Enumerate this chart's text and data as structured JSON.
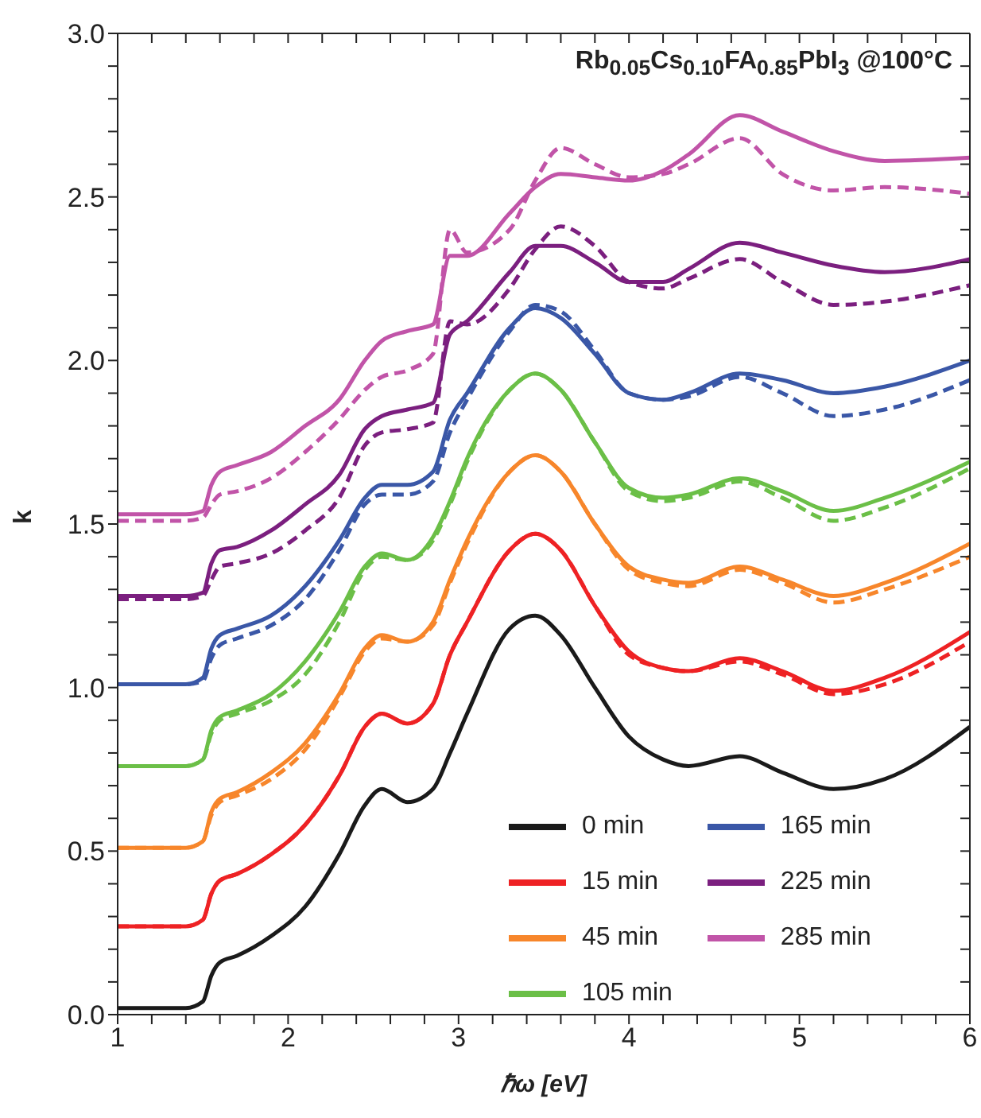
{
  "chart_data": {
    "type": "line",
    "title": "Rb$_{0.05}$Cs$_{0.10}$FA$_{0.85}$PbI$_{3}$ @100°C",
    "xlabel": "ℏω [eV]",
    "ylabel": "k",
    "x": [
      1,
      1.4,
      1.5,
      1.55,
      1.6,
      1.7,
      1.9,
      2.1,
      2.3,
      2.45,
      2.55,
      2.7,
      2.85,
      2.95,
      3.05,
      3.3,
      3.45,
      3.6,
      3.8,
      4.0,
      4.2,
      4.35,
      4.65,
      4.9,
      5.2,
      5.5,
      6
    ],
    "series": [
      {
        "name": "0 min",
        "color": "#1a1a1a",
        "line_style": "solid",
        "values": [
          0.02,
          0.02,
          0.04,
          0.12,
          0.16,
          0.18,
          0.24,
          0.33,
          0.49,
          0.64,
          0.69,
          0.65,
          0.69,
          0.8,
          0.92,
          1.18,
          1.22,
          1.16,
          1.0,
          0.85,
          0.78,
          0.76,
          0.79,
          0.74,
          0.69,
          0.72,
          0.88
        ]
      },
      {
        "name": "15 min",
        "color": "#ee2224",
        "line_style": "solid",
        "values": [
          0.27,
          0.27,
          0.29,
          0.37,
          0.41,
          0.43,
          0.49,
          0.58,
          0.73,
          0.88,
          0.92,
          0.89,
          0.95,
          1.1,
          1.2,
          1.42,
          1.47,
          1.42,
          1.25,
          1.11,
          1.06,
          1.05,
          1.09,
          1.05,
          0.99,
          1.03,
          1.17
        ]
      },
      {
        "color": "#ee2224",
        "line_style": "dashed",
        "values": [
          0.27,
          0.27,
          0.29,
          0.37,
          0.41,
          0.43,
          0.49,
          0.58,
          0.73,
          0.88,
          0.92,
          0.89,
          0.95,
          1.1,
          1.2,
          1.42,
          1.47,
          1.42,
          1.25,
          1.1,
          1.06,
          1.05,
          1.08,
          1.04,
          0.98,
          1.01,
          1.14
        ]
      },
      {
        "name": "45 min",
        "color": "#f7862b",
        "line_style": "solid",
        "values": [
          0.51,
          0.51,
          0.53,
          0.62,
          0.66,
          0.68,
          0.74,
          0.83,
          0.98,
          1.12,
          1.16,
          1.14,
          1.2,
          1.33,
          1.45,
          1.66,
          1.71,
          1.66,
          1.5,
          1.37,
          1.33,
          1.32,
          1.37,
          1.33,
          1.28,
          1.32,
          1.44
        ]
      },
      {
        "color": "#f7862b",
        "line_style": "dashed",
        "values": [
          0.51,
          0.51,
          0.53,
          0.61,
          0.65,
          0.67,
          0.72,
          0.81,
          0.97,
          1.11,
          1.15,
          1.14,
          1.19,
          1.32,
          1.44,
          1.66,
          1.71,
          1.66,
          1.5,
          1.36,
          1.32,
          1.31,
          1.36,
          1.32,
          1.26,
          1.3,
          1.4
        ]
      },
      {
        "name": "105 min",
        "color": "#6bbf47",
        "line_style": "solid",
        "values": [
          0.76,
          0.76,
          0.78,
          0.87,
          0.91,
          0.93,
          0.98,
          1.08,
          1.23,
          1.37,
          1.41,
          1.39,
          1.46,
          1.57,
          1.7,
          1.91,
          1.96,
          1.91,
          1.75,
          1.61,
          1.58,
          1.59,
          1.64,
          1.6,
          1.54,
          1.58,
          1.69
        ]
      },
      {
        "color": "#6bbf47",
        "line_style": "dashed",
        "values": [
          0.76,
          0.76,
          0.78,
          0.86,
          0.9,
          0.92,
          0.96,
          1.04,
          1.2,
          1.36,
          1.4,
          1.39,
          1.45,
          1.56,
          1.69,
          1.91,
          1.96,
          1.91,
          1.75,
          1.6,
          1.57,
          1.58,
          1.63,
          1.58,
          1.51,
          1.55,
          1.67
        ]
      },
      {
        "name": "165 min",
        "color": "#3a57a7",
        "line_style": "solid",
        "values": [
          1.01,
          1.01,
          1.03,
          1.12,
          1.16,
          1.18,
          1.22,
          1.31,
          1.45,
          1.58,
          1.62,
          1.62,
          1.66,
          1.82,
          1.9,
          2.1,
          2.16,
          2.13,
          2.02,
          1.9,
          1.88,
          1.9,
          1.96,
          1.94,
          1.9,
          1.92,
          2.0
        ]
      },
      {
        "color": "#3a57a7",
        "line_style": "dashed",
        "values": [
          1.01,
          1.01,
          1.02,
          1.09,
          1.13,
          1.15,
          1.19,
          1.27,
          1.42,
          1.56,
          1.59,
          1.59,
          1.63,
          1.78,
          1.88,
          2.09,
          2.17,
          2.15,
          2.03,
          1.9,
          1.88,
          1.89,
          1.95,
          1.9,
          1.83,
          1.85,
          1.94
        ]
      },
      {
        "name": "225 min",
        "color": "#7b1f7f",
        "line_style": "solid",
        "values": [
          1.28,
          1.28,
          1.29,
          1.38,
          1.42,
          1.43,
          1.48,
          1.56,
          1.65,
          1.79,
          1.83,
          1.85,
          1.87,
          2.08,
          2.12,
          2.27,
          2.35,
          2.35,
          2.3,
          2.24,
          2.24,
          2.28,
          2.36,
          2.33,
          2.29,
          2.27,
          2.31
        ]
      },
      {
        "color": "#7b1f7f",
        "line_style": "dashed",
        "values": [
          1.27,
          1.27,
          1.28,
          1.33,
          1.37,
          1.38,
          1.41,
          1.48,
          1.58,
          1.74,
          1.78,
          1.79,
          1.81,
          2.12,
          2.11,
          2.22,
          2.34,
          2.41,
          2.35,
          2.24,
          2.22,
          2.25,
          2.31,
          2.24,
          2.17,
          2.18,
          2.23
        ]
      },
      {
        "name": "285 min",
        "color": "#c154a8",
        "line_style": "solid",
        "values": [
          1.53,
          1.53,
          1.54,
          1.62,
          1.66,
          1.68,
          1.72,
          1.8,
          1.88,
          2.0,
          2.06,
          2.09,
          2.11,
          2.32,
          2.32,
          2.45,
          2.53,
          2.57,
          2.56,
          2.55,
          2.58,
          2.63,
          2.75,
          2.7,
          2.64,
          2.61,
          2.62
        ]
      },
      {
        "color": "#c154a8",
        "line_style": "dashed",
        "values": [
          1.51,
          1.51,
          1.52,
          1.56,
          1.59,
          1.6,
          1.64,
          1.72,
          1.82,
          1.91,
          1.95,
          1.97,
          2.02,
          2.4,
          2.33,
          2.4,
          2.55,
          2.65,
          2.6,
          2.56,
          2.57,
          2.6,
          2.68,
          2.57,
          2.52,
          2.53,
          2.51
        ]
      }
    ],
    "xlim": [
      1,
      6
    ],
    "xticks": [
      1,
      {
        "value": 1.2,
        "label": null
      },
      {
        "value": 1.4,
        "label": null
      },
      {
        "value": 1.6,
        "label": null
      },
      {
        "value": 1.8,
        "label": null
      },
      2,
      {
        "value": 2.2,
        "label": null
      },
      {
        "value": 2.4,
        "label": null
      },
      {
        "value": 2.6,
        "label": null
      },
      {
        "value": 2.8,
        "label": null
      },
      3,
      {
        "value": 3.2,
        "label": null
      },
      {
        "value": 3.4,
        "label": null
      },
      {
        "value": 3.6,
        "label": null
      },
      {
        "value": 3.8,
        "label": null
      },
      4,
      {
        "value": 4.2,
        "label": null
      },
      {
        "value": 4.4,
        "label": null
      },
      {
        "value": 4.6,
        "label": null
      },
      {
        "value": 4.8,
        "label": null
      },
      5,
      {
        "value": 5.2,
        "label": null
      },
      {
        "value": 5.4,
        "label": null
      },
      {
        "value": 5.6,
        "label": null
      },
      {
        "value": 5.8,
        "label": null
      },
      6
    ],
    "ylim": [
      0,
      3
    ],
    "yticks": [
      {
        "value": 0,
        "label": "0.0"
      },
      {
        "value": 0.1,
        "label": null
      },
      {
        "value": 0.2,
        "label": null
      },
      {
        "value": 0.3,
        "label": null
      },
      {
        "value": 0.4,
        "label": null
      },
      0.5,
      {
        "value": 0.6,
        "label": null
      },
      {
        "value": 0.7,
        "label": null
      },
      {
        "value": 0.8,
        "label": null
      },
      {
        "value": 0.9,
        "label": null
      },
      {
        "value": 1,
        "label": "1.0"
      },
      {
        "value": 1.1,
        "label": null
      },
      {
        "value": 1.2,
        "label": null
      },
      {
        "value": 1.3,
        "label": null
      },
      {
        "value": 1.4,
        "label": null
      },
      1.5,
      {
        "value": 1.6,
        "label": null
      },
      {
        "value": 1.7,
        "label": null
      },
      {
        "value": 1.8,
        "label": null
      },
      {
        "value": 1.9,
        "label": null
      },
      {
        "value": 2,
        "label": "2.0"
      },
      {
        "value": 2.1,
        "label": null
      },
      {
        "value": 2.2,
        "label": null
      },
      {
        "value": 2.3,
        "label": null
      },
      {
        "value": 2.4,
        "label": null
      },
      2.5,
      {
        "value": 2.6,
        "label": null
      },
      {
        "value": 2.7,
        "label": null
      },
      {
        "value": 2.8,
        "label": null
      },
      {
        "value": 2.9,
        "label": null
      },
      {
        "value": 3,
        "label": "3.0"
      }
    ],
    "grid": false,
    "legend": "bottom right",
    "marker": "none"
  }
}
